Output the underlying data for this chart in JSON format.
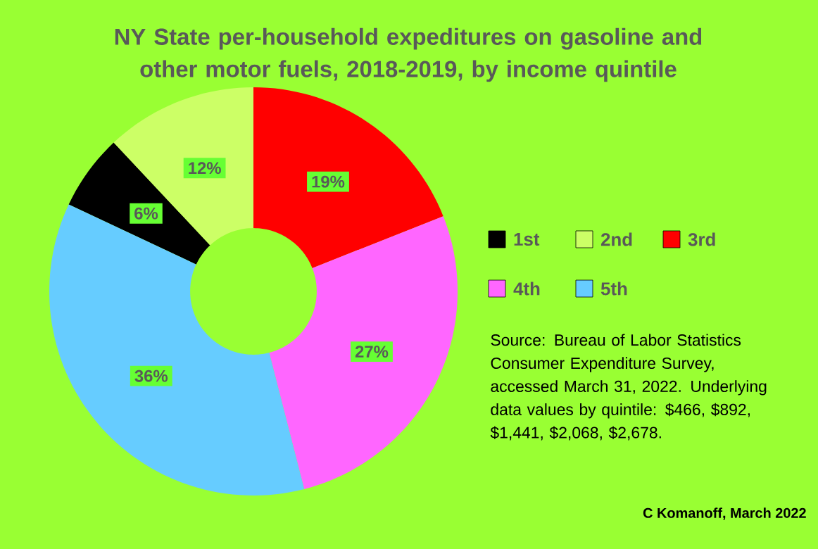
{
  "chart_data": {
    "type": "donut",
    "title": "NY State per-household expeditures on gasoline and other motor fuels, 2018-2019, by income quintile",
    "categories": [
      "1st",
      "2nd",
      "3rd",
      "4th",
      "5th"
    ],
    "values": [
      6,
      12,
      19,
      27,
      36
    ],
    "value_labels": [
      "6%",
      "12%",
      "19%",
      "27%",
      "36%"
    ],
    "colors": [
      "#000000",
      "#ccff66",
      "#ff0000",
      "#ff66ff",
      "#66ccff"
    ],
    "legend": "right",
    "annotations": [
      "Source: Bureau of Labor Statistics Consumer Expenditure Survey, accessed March 31, 2022. Underlying data values by quintile: $466, $892, $1,441, $2,068, $2,678.",
      "C Komanoff, March 2022"
    ]
  }
}
